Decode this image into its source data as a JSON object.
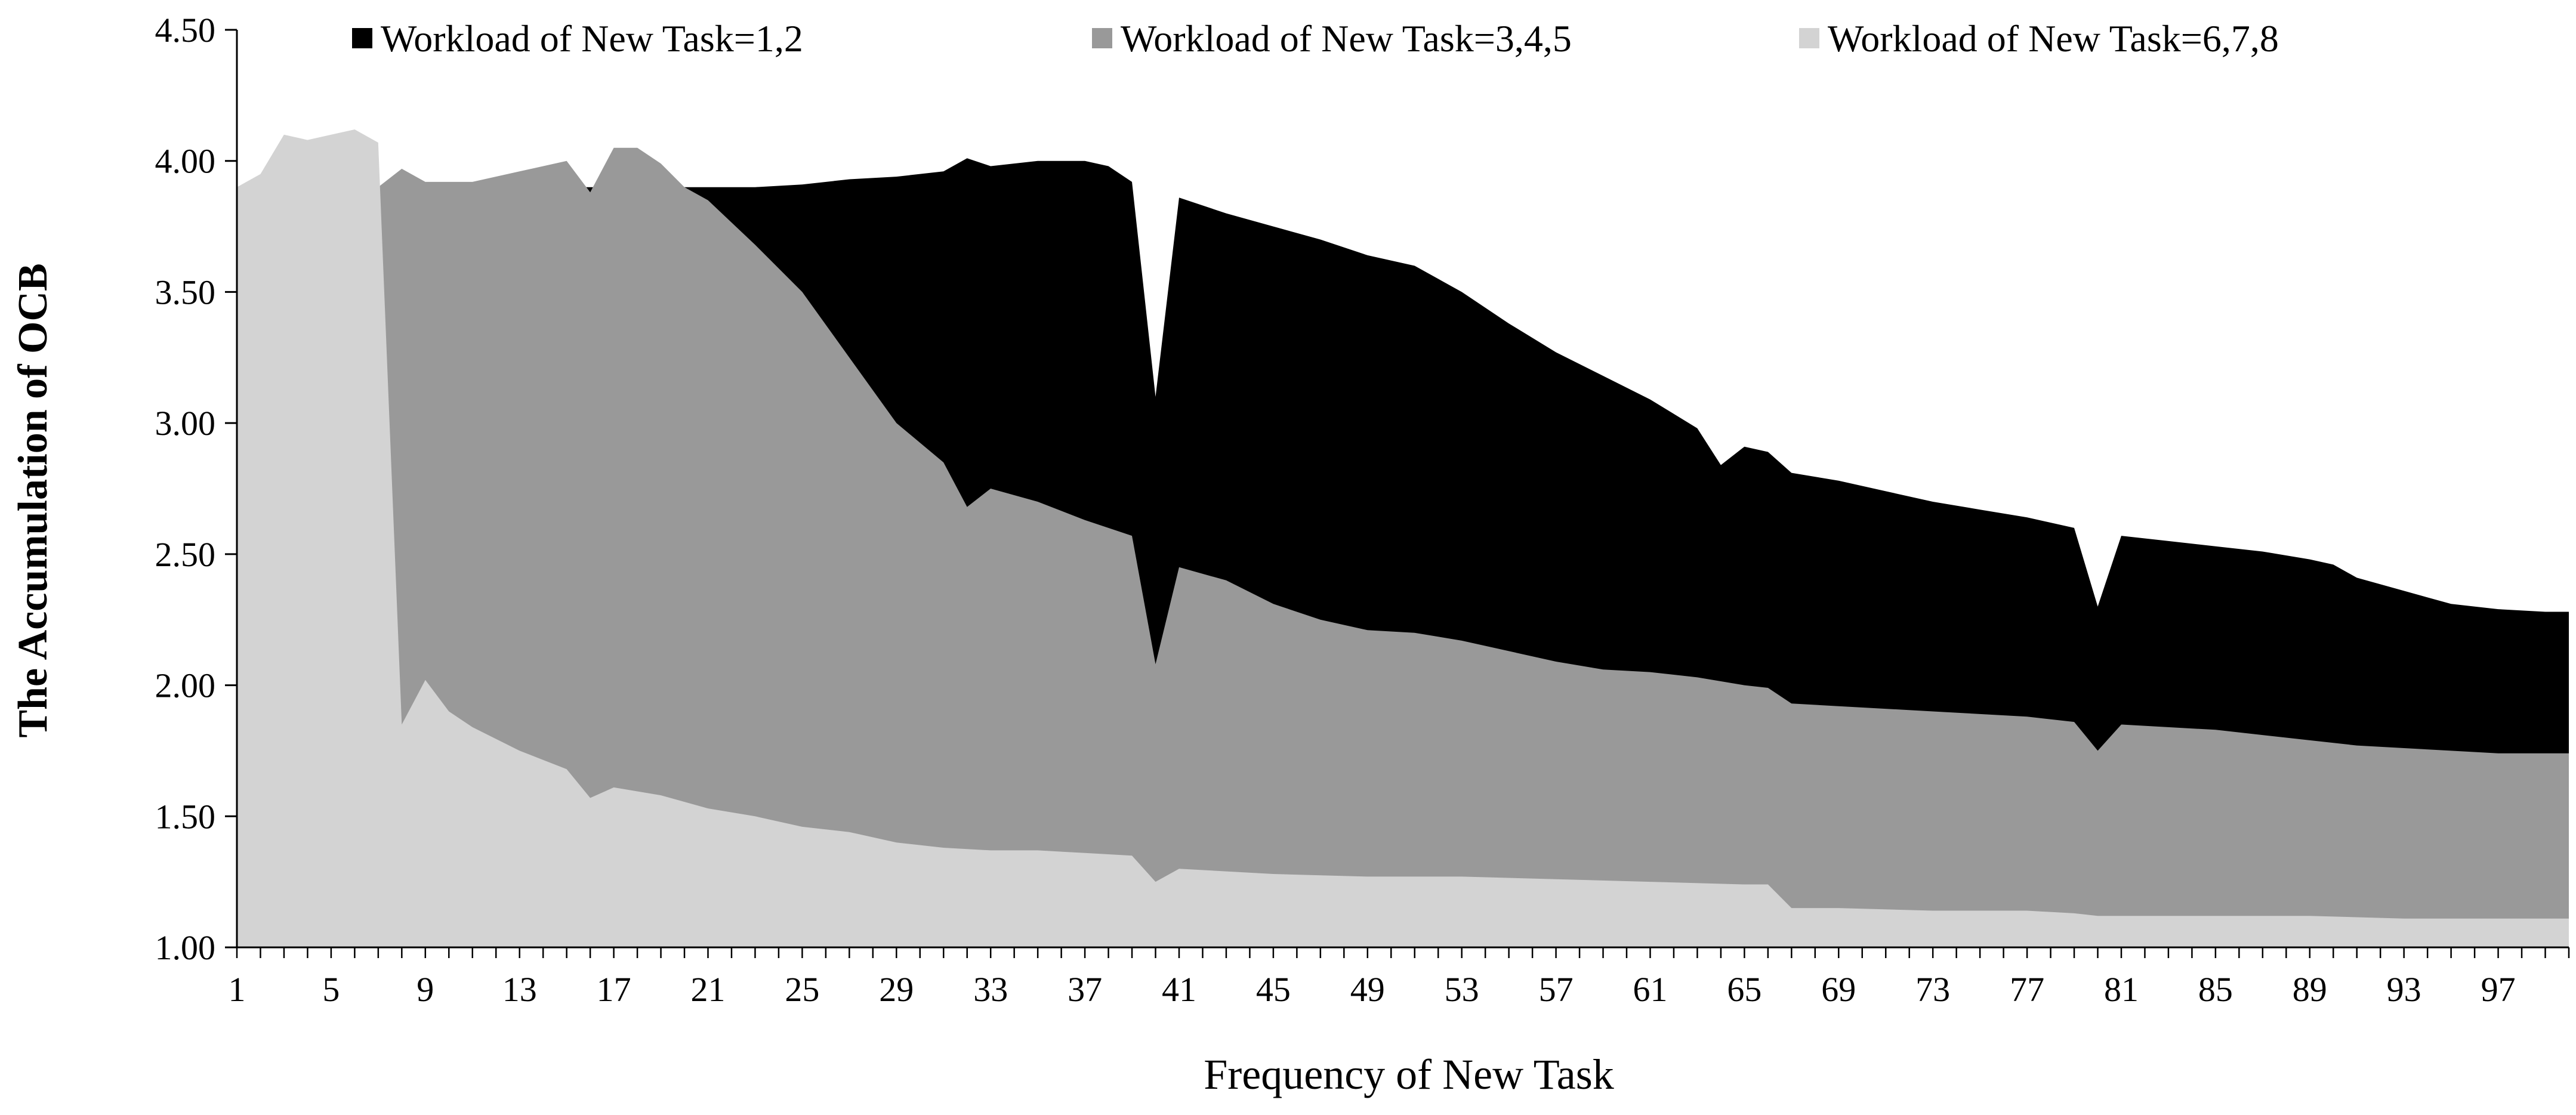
{
  "chart_data": {
    "type": "area",
    "title": "",
    "xlabel": "Frequency of New Task",
    "ylabel": "The Accumulation of OCB",
    "ylim": [
      1.0,
      4.5
    ],
    "xlim": [
      1,
      100
    ],
    "yticks": [
      "1.00",
      "1.50",
      "2.00",
      "2.50",
      "3.00",
      "3.50",
      "4.00",
      "4.50"
    ],
    "xticks": [
      "1",
      "5",
      "9",
      "13",
      "17",
      "21",
      "25",
      "29",
      "33",
      "37",
      "41",
      "45",
      "49",
      "53",
      "57",
      "61",
      "65",
      "69",
      "73",
      "77",
      "81",
      "85",
      "89",
      "93",
      "97"
    ],
    "grid": false,
    "legend_position": "top",
    "series": [
      {
        "name": "Workload of New Task=1,2",
        "color": "#000000",
        "points": [
          [
            1,
            3.9
          ],
          [
            5,
            3.9
          ],
          [
            10,
            3.9
          ],
          [
            15,
            3.9
          ],
          [
            19,
            3.9
          ],
          [
            21,
            3.9
          ],
          [
            23,
            3.9
          ],
          [
            25,
            3.91
          ],
          [
            27,
            3.93
          ],
          [
            29,
            3.94
          ],
          [
            31,
            3.96
          ],
          [
            32,
            4.01
          ],
          [
            33,
            3.98
          ],
          [
            35,
            4.0
          ],
          [
            37,
            4.0
          ],
          [
            38,
            3.98
          ],
          [
            39,
            3.92
          ],
          [
            40,
            3.1
          ],
          [
            41,
            3.86
          ],
          [
            43,
            3.8
          ],
          [
            45,
            3.75
          ],
          [
            47,
            3.7
          ],
          [
            49,
            3.64
          ],
          [
            51,
            3.6
          ],
          [
            53,
            3.5
          ],
          [
            55,
            3.38
          ],
          [
            57,
            3.27
          ],
          [
            59,
            3.18
          ],
          [
            61,
            3.09
          ],
          [
            63,
            2.98
          ],
          [
            64,
            2.84
          ],
          [
            65,
            2.91
          ],
          [
            66,
            2.89
          ],
          [
            67,
            2.81
          ],
          [
            69,
            2.78
          ],
          [
            71,
            2.74
          ],
          [
            73,
            2.7
          ],
          [
            75,
            2.67
          ],
          [
            77,
            2.64
          ],
          [
            79,
            2.6
          ],
          [
            80,
            2.3
          ],
          [
            81,
            2.57
          ],
          [
            83,
            2.55
          ],
          [
            85,
            2.53
          ],
          [
            87,
            2.51
          ],
          [
            89,
            2.48
          ],
          [
            90,
            2.46
          ],
          [
            91,
            2.41
          ],
          [
            93,
            2.36
          ],
          [
            95,
            2.31
          ],
          [
            97,
            2.29
          ],
          [
            99,
            2.28
          ],
          [
            100,
            2.28
          ]
        ]
      },
      {
        "name": "Workload of New Task=3,4,5",
        "color": "#999999",
        "points": [
          [
            1,
            3.9
          ],
          [
            3,
            3.92
          ],
          [
            4,
            3.99
          ],
          [
            5,
            3.91
          ],
          [
            6,
            3.9
          ],
          [
            7,
            3.9
          ],
          [
            8,
            3.97
          ],
          [
            9,
            3.92
          ],
          [
            11,
            3.92
          ],
          [
            13,
            3.96
          ],
          [
            15,
            4.0
          ],
          [
            16,
            3.88
          ],
          [
            17,
            4.05
          ],
          [
            18,
            4.05
          ],
          [
            19,
            3.99
          ],
          [
            20,
            3.9
          ],
          [
            21,
            3.85
          ],
          [
            23,
            3.68
          ],
          [
            25,
            3.5
          ],
          [
            27,
            3.25
          ],
          [
            29,
            3.0
          ],
          [
            31,
            2.85
          ],
          [
            32,
            2.68
          ],
          [
            33,
            2.75
          ],
          [
            35,
            2.7
          ],
          [
            37,
            2.63
          ],
          [
            39,
            2.57
          ],
          [
            40,
            2.08
          ],
          [
            41,
            2.45
          ],
          [
            43,
            2.4
          ],
          [
            45,
            2.31
          ],
          [
            47,
            2.25
          ],
          [
            49,
            2.21
          ],
          [
            51,
            2.2
          ],
          [
            53,
            2.17
          ],
          [
            55,
            2.13
          ],
          [
            57,
            2.09
          ],
          [
            59,
            2.06
          ],
          [
            61,
            2.05
          ],
          [
            63,
            2.03
          ],
          [
            65,
            2.0
          ],
          [
            66,
            1.99
          ],
          [
            67,
            1.93
          ],
          [
            69,
            1.92
          ],
          [
            73,
            1.9
          ],
          [
            77,
            1.88
          ],
          [
            79,
            1.86
          ],
          [
            80,
            1.75
          ],
          [
            81,
            1.85
          ],
          [
            85,
            1.83
          ],
          [
            87,
            1.81
          ],
          [
            89,
            1.79
          ],
          [
            91,
            1.77
          ],
          [
            93,
            1.76
          ],
          [
            95,
            1.75
          ],
          [
            97,
            1.74
          ],
          [
            100,
            1.74
          ]
        ]
      },
      {
        "name": "Workload of New Task=6,7,8",
        "color": "#d3d3d3",
        "points": [
          [
            1,
            3.9
          ],
          [
            2,
            3.95
          ],
          [
            3,
            4.1
          ],
          [
            4,
            4.08
          ],
          [
            5,
            4.1
          ],
          [
            6,
            4.12
          ],
          [
            7,
            4.07
          ],
          [
            8,
            1.85
          ],
          [
            9,
            2.02
          ],
          [
            10,
            1.9
          ],
          [
            11,
            1.84
          ],
          [
            13,
            1.75
          ],
          [
            15,
            1.68
          ],
          [
            16,
            1.57
          ],
          [
            17,
            1.61
          ],
          [
            19,
            1.58
          ],
          [
            21,
            1.53
          ],
          [
            23,
            1.5
          ],
          [
            25,
            1.46
          ],
          [
            27,
            1.44
          ],
          [
            29,
            1.4
          ],
          [
            31,
            1.38
          ],
          [
            33,
            1.37
          ],
          [
            35,
            1.37
          ],
          [
            37,
            1.36
          ],
          [
            39,
            1.35
          ],
          [
            40,
            1.25
          ],
          [
            41,
            1.3
          ],
          [
            45,
            1.28
          ],
          [
            49,
            1.27
          ],
          [
            53,
            1.27
          ],
          [
            57,
            1.26
          ],
          [
            61,
            1.25
          ],
          [
            65,
            1.24
          ],
          [
            66,
            1.24
          ],
          [
            67,
            1.15
          ],
          [
            69,
            1.15
          ],
          [
            73,
            1.14
          ],
          [
            77,
            1.14
          ],
          [
            79,
            1.13
          ],
          [
            80,
            1.12
          ],
          [
            81,
            1.12
          ],
          [
            85,
            1.12
          ],
          [
            89,
            1.12
          ],
          [
            93,
            1.11
          ],
          [
            97,
            1.11
          ],
          [
            100,
            1.11
          ]
        ]
      }
    ]
  }
}
